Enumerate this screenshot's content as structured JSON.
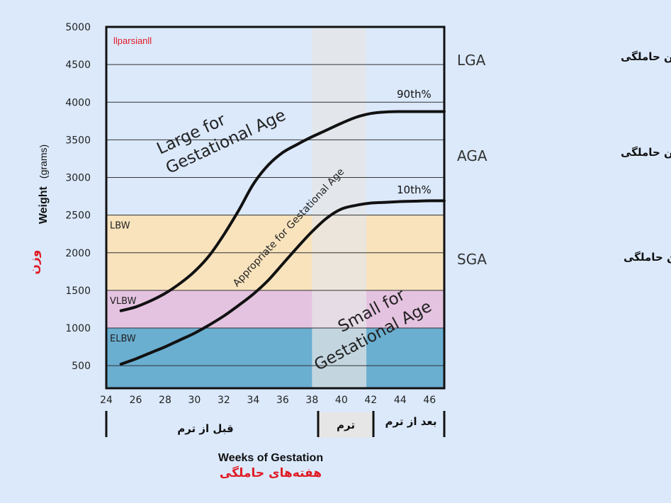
{
  "watermark": "llparsianll",
  "chart_data": {
    "type": "line",
    "x_axis": {
      "label": "Weeks of Gestation",
      "label_fa": "هفته‌های حاملگی",
      "min": 24,
      "max": 47,
      "ticks": [
        24,
        26,
        28,
        30,
        32,
        34,
        36,
        38,
        40,
        42,
        44,
        46
      ]
    },
    "y_axis": {
      "label": "Weight",
      "label_unit": "(grams)",
      "label_fa": "وزن",
      "min": 200,
      "max": 5000,
      "ticks": [
        500,
        1000,
        1500,
        2000,
        2500,
        3000,
        3500,
        4000,
        4500,
        5000
      ]
    },
    "grid": true,
    "weight_bands": [
      {
        "label": "ELBW",
        "from": 200,
        "to": 1000,
        "color": "#6aaed0"
      },
      {
        "label": "VLBW",
        "from": 1000,
        "to": 1500,
        "color": "#e4c3e0"
      },
      {
        "label": "LBW",
        "from": 1500,
        "to": 2500,
        "color": "#f8e3bd"
      }
    ],
    "term_band": {
      "from": 38,
      "to": 41.7,
      "color": "#e6e6e6"
    },
    "series": [
      {
        "name": "90th%",
        "x": [
          25,
          26,
          27,
          28,
          29,
          30,
          31,
          32,
          33,
          34,
          35,
          36,
          37,
          38,
          39,
          40,
          41,
          42,
          43,
          44,
          45,
          46,
          47
        ],
        "y": [
          1230,
          1280,
          1360,
          1460,
          1590,
          1750,
          1960,
          2240,
          2560,
          2910,
          3160,
          3330,
          3440,
          3540,
          3630,
          3720,
          3800,
          3850,
          3870,
          3875,
          3875,
          3875,
          3875
        ]
      },
      {
        "name": "10th%",
        "x": [
          25,
          26,
          27,
          28,
          29,
          30,
          31,
          32,
          33,
          34,
          35,
          36,
          37,
          38,
          39,
          40,
          41,
          42,
          43,
          44,
          45,
          46,
          47
        ],
        "y": [
          520,
          590,
          670,
          750,
          840,
          930,
          1040,
          1160,
          1300,
          1450,
          1630,
          1850,
          2070,
          2280,
          2460,
          2580,
          2630,
          2660,
          2670,
          2680,
          2685,
          2690,
          2690
        ]
      }
    ],
    "region_labels": {
      "lga": [
        "Large for",
        "Gestational Age"
      ],
      "aga": "Appropriate for Gestational Age",
      "sga": [
        "Small for",
        "Gestational Age"
      ]
    }
  },
  "right_labels": [
    {
      "abbr": "LGA",
      "fa": "بزرگتر از  سن حاملگی"
    },
    {
      "abbr": "AGA",
      "fa": "نزدیک به سن حاملگی"
    },
    {
      "abbr": "SGA",
      "fa": "کوچکتر از  سن حاملگی"
    }
  ],
  "periods": [
    {
      "label": "قبل از ترم"
    },
    {
      "label": "ترم"
    },
    {
      "label": "بعد از ترم"
    }
  ]
}
